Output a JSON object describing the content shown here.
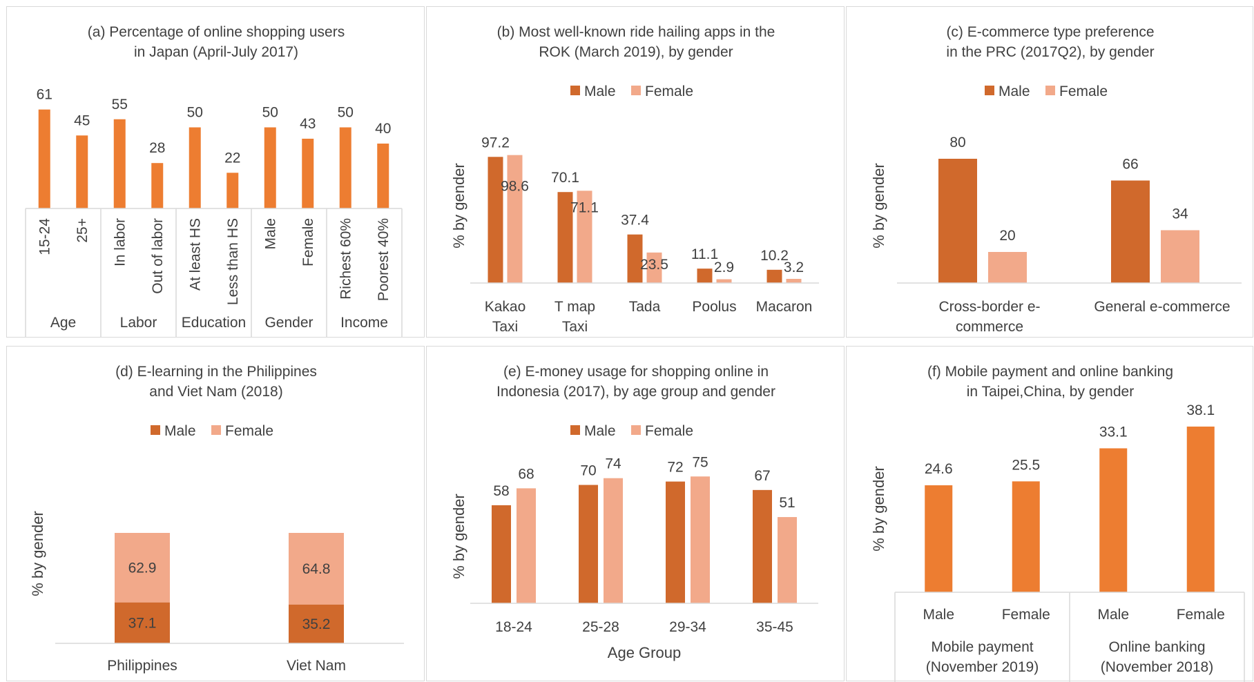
{
  "colors": {
    "orange": "#ED7D31",
    "male": "#D0692C",
    "female": "#F2A98A",
    "axis": "#d9d9d9",
    "text": "#404040"
  },
  "chart_data": [
    {
      "id": "a",
      "type": "bar",
      "title_lines": [
        "(a) Percentage of online shopping users",
        "in Japan (April-July 2017)"
      ],
      "categories": [
        "15-24",
        "25+",
        "In labor",
        "Out of labor",
        "At least HS",
        "Less than HS",
        "Male",
        "Female",
        "Richest 60%",
        "Poorest 40%"
      ],
      "groups": [
        "Age",
        "Labor",
        "Education",
        "Gender",
        "Income"
      ],
      "values": [
        61,
        45,
        55,
        28,
        50,
        22,
        50,
        43,
        50,
        40
      ],
      "ylim": [
        0,
        70
      ],
      "grid": false,
      "legend": "none"
    },
    {
      "id": "b",
      "type": "bar",
      "title_lines": [
        "(b) Most well-known ride hailing apps in the",
        "ROK (March 2019), by gender"
      ],
      "ylabel": "% by gender",
      "legend_labels": [
        "Male",
        "Female"
      ],
      "categories": [
        [
          "Kakao",
          "Taxi"
        ],
        [
          "T map",
          "Taxi"
        ],
        [
          "Tada"
        ],
        [
          "Poolus"
        ],
        [
          "Macaron"
        ]
      ],
      "series": [
        {
          "name": "Male",
          "values": [
            97.2,
            70.1,
            37.4,
            11.1,
            10.2
          ]
        },
        {
          "name": "Female",
          "values": [
            98.6,
            71.1,
            23.5,
            2.9,
            3.2
          ]
        }
      ],
      "ylim": [
        0,
        110
      ],
      "grid": false,
      "legend": "top"
    },
    {
      "id": "c",
      "type": "bar",
      "title_lines": [
        "(c) E-commerce type preference",
        "in the PRC (2017Q2), by gender"
      ],
      "ylabel": "% by gender",
      "legend_labels": [
        "Male",
        "Female"
      ],
      "categories": [
        [
          "Cross-border e-",
          "commerce"
        ],
        [
          "General e-commerce"
        ]
      ],
      "series": [
        {
          "name": "Male",
          "values": [
            80,
            66
          ]
        },
        {
          "name": "Female",
          "values": [
            20,
            34
          ]
        }
      ],
      "ylim": [
        0,
        100
      ],
      "grid": false,
      "legend": "top"
    },
    {
      "id": "d",
      "type": "bar",
      "stacked": true,
      "title_lines": [
        "(d) E-learning in the Philippines",
        "and Viet Nam (2018)"
      ],
      "ylabel": "% by gender",
      "legend_labels": [
        "Male",
        "Female"
      ],
      "categories": [
        [
          "Philippines"
        ],
        [
          "Viet Nam"
        ]
      ],
      "series": [
        {
          "name": "Male",
          "values": [
            37.1,
            35.2
          ]
        },
        {
          "name": "Female",
          "values": [
            62.9,
            64.8
          ]
        }
      ],
      "ylim": [
        0,
        100
      ],
      "grid": false,
      "legend": "top"
    },
    {
      "id": "e",
      "type": "bar",
      "title_lines": [
        "(e) E-money usage for shopping online in",
        "Indonesia (2017), by age group and gender"
      ],
      "ylabel": "% by gender",
      "xlabel": "Age Group",
      "legend_labels": [
        "Male",
        "Female"
      ],
      "categories": [
        [
          "18-24"
        ],
        [
          "25-28"
        ],
        [
          "29-34"
        ],
        [
          "35-45"
        ]
      ],
      "series": [
        {
          "name": "Male",
          "values": [
            58,
            70,
            72,
            67
          ]
        },
        {
          "name": "Female",
          "values": [
            68,
            74,
            75,
            51
          ]
        }
      ],
      "ylim": [
        0,
        90
      ],
      "grid": false,
      "legend": "top"
    },
    {
      "id": "f",
      "type": "bar",
      "title_lines": [
        "(f) Mobile payment and online banking",
        "in Taipei,China, by gender"
      ],
      "ylabel": "% by gender",
      "categories": [
        "Male",
        "Female",
        "Male",
        "Female"
      ],
      "groups": [
        [
          "Mobile payment",
          "(November 2019)"
        ],
        [
          "Online banking",
          "(November 2018)"
        ]
      ],
      "values": [
        24.6,
        25.5,
        33.1,
        38.1
      ],
      "ylim": [
        0,
        40
      ],
      "grid": false,
      "legend": "none"
    }
  ]
}
